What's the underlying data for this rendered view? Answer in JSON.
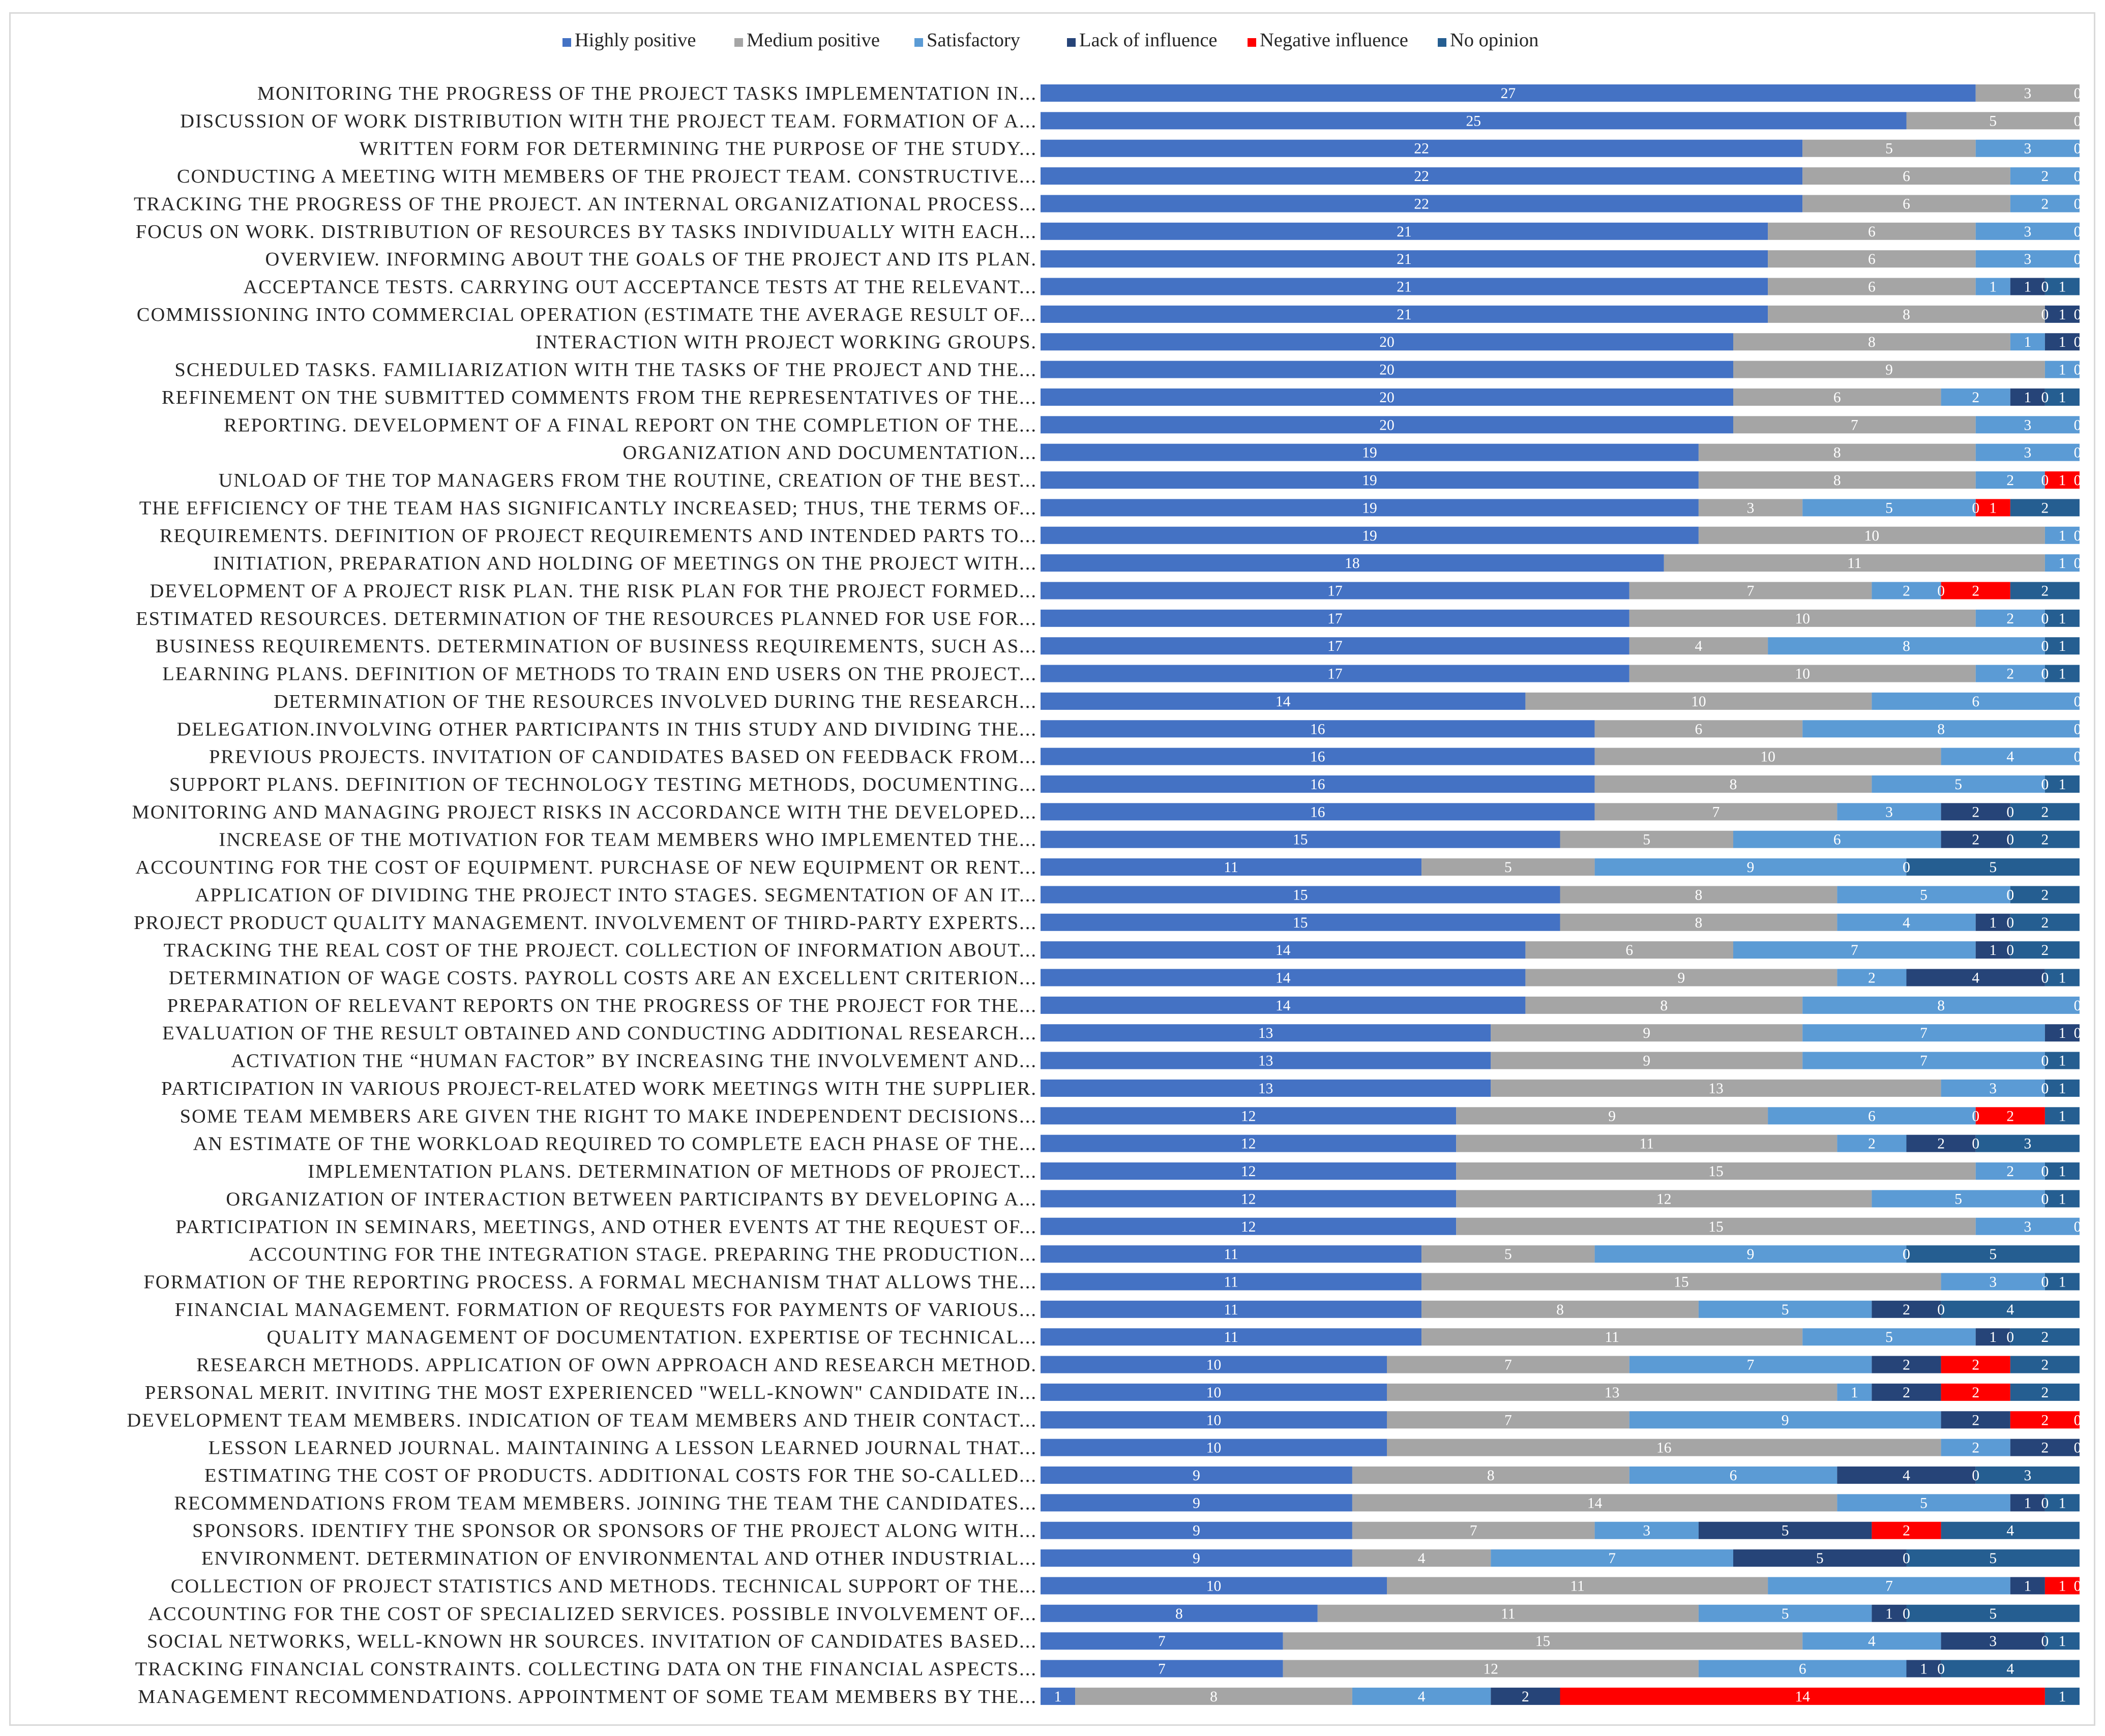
{
  "chart_data": {
    "type": "bar",
    "stacked": true,
    "orientation": "horizontal",
    "legend_position": "top",
    "grid": false,
    "xlim": [
      0,
      30
    ],
    "series": [
      {
        "name": "Highly positive",
        "color": "#4472C4"
      },
      {
        "name": "Medium positive",
        "color": "#A5A5A5"
      },
      {
        "name": "Satisfactory",
        "color": "#5B9BD5"
      },
      {
        "name": "Lack of influence",
        "color": "#264478"
      },
      {
        "name": "Negative influence",
        "color": "#FF0000"
      },
      {
        "name": "No opinion",
        "color": "#255E91"
      }
    ],
    "categories": [
      "MONITORING THE PROGRESS OF THE PROJECT TASKS IMPLEMENTATION IN...",
      "DISCUSSION OF WORK DISTRIBUTION WITH THE PROJECT TEAM. FORMATION OF A...",
      "WRITTEN FORM FOR DETERMINING THE PURPOSE OF THE STUDY...",
      "CONDUCTING A MEETING WITH MEMBERS OF THE PROJECT TEAM. CONSTRUCTIVE...",
      "TRACKING THE PROGRESS OF THE PROJECT. AN INTERNAL ORGANIZATIONAL PROCESS...",
      "FOCUS ON WORK. DISTRIBUTION OF RESOURCES BY TASKS INDIVIDUALLY WITH EACH...",
      "OVERVIEW. INFORMING ABOUT THE GOALS OF THE PROJECT AND ITS PLAN.",
      "ACCEPTANCE TESTS. CARRYING OUT ACCEPTANCE TESTS AT THE RELEVANT...",
      "COMMISSIONING INTO COMMERCIAL OPERATION (ESTIMATE THE AVERAGE RESULT OF...",
      "INTERACTION WITH PROJECT WORKING GROUPS.",
      "SCHEDULED TASKS. FAMILIARIZATION WITH THE TASKS OF THE PROJECT AND THE...",
      "REFINEMENT ON THE SUBMITTED COMMENTS FROM THE REPRESENTATIVES OF THE...",
      "REPORTING. DEVELOPMENT OF A FINAL REPORT ON THE COMPLETION OF THE...",
      "ORGANIZATION AND DOCUMENTATION...",
      "UNLOAD OF THE TOP MANAGERS FROM THE ROUTINE, CREATION OF THE BEST...",
      "THE EFFICIENCY OF THE TEAM HAS SIGNIFICANTLY INCREASED; THUS, THE TERMS OF...",
      "REQUIREMENTS. DEFINITION OF PROJECT REQUIREMENTS AND INTENDED PARTS TO...",
      "INITIATION, PREPARATION AND HOLDING OF MEETINGS ON THE PROJECT WITH...",
      "DEVELOPMENT OF A PROJECT RISK PLAN. THE RISK PLAN FOR THE PROJECT FORMED...",
      "ESTIMATED RESOURCES. DETERMINATION OF THE RESOURCES PLANNED FOR USE FOR...",
      "BUSINESS REQUIREMENTS. DETERMINATION OF BUSINESS REQUIREMENTS, SUCH AS...",
      "LEARNING PLANS. DEFINITION OF METHODS TO TRAIN END USERS ON THE PROJECT...",
      "DETERMINATION OF THE RESOURCES INVOLVED DURING THE RESEARCH...",
      "DELEGATION.INVOLVING OTHER PARTICIPANTS IN THIS STUDY AND DIVIDING THE...",
      "PREVIOUS PROJECTS. INVITATION OF CANDIDATES BASED ON FEEDBACK FROM...",
      "SUPPORT PLANS. DEFINITION OF TECHNOLOGY TESTING METHODS, DOCUMENTING...",
      "MONITORING AND MANAGING PROJECT RISKS IN ACCORDANCE WITH THE DEVELOPED...",
      "INCREASE OF THE MOTIVATION FOR TEAM MEMBERS WHO IMPLEMENTED THE...",
      "ACCOUNTING FOR THE COST OF EQUIPMENT. PURCHASE OF NEW EQUIPMENT OR RENT...",
      "APPLICATION OF DIVIDING THE PROJECT INTO STAGES. SEGMENTATION OF AN IT...",
      "PROJECT PRODUCT QUALITY MANAGEMENT. INVOLVEMENT OF THIRD-PARTY EXPERTS...",
      "TRACKING THE REAL COST OF THE PROJECT. COLLECTION OF INFORMATION ABOUT...",
      "DETERMINATION OF WAGE COSTS. PAYROLL COSTS ARE AN EXCELLENT CRITERION...",
      "PREPARATION OF RELEVANT REPORTS ON THE PROGRESS OF THE PROJECT FOR THE...",
      "EVALUATION OF THE RESULT OBTAINED AND CONDUCTING ADDITIONAL RESEARCH...",
      "ACTIVATION THE “HUMAN FACTOR” BY INCREASING THE INVOLVEMENT AND...",
      "PARTICIPATION IN VARIOUS PROJECT-RELATED WORK MEETINGS WITH THE SUPPLIER.",
      "SOME TEAM MEMBERS ARE GIVEN THE RIGHT TO MAKE INDEPENDENT DECISIONS...",
      "AN ESTIMATE OF THE WORKLOAD REQUIRED TO COMPLETE EACH PHASE OF THE...",
      "IMPLEMENTATION PLANS. DETERMINATION OF METHODS OF PROJECT...",
      "ORGANIZATION OF INTERACTION BETWEEN PARTICIPANTS BY DEVELOPING A...",
      "PARTICIPATION IN SEMINARS, MEETINGS, AND OTHER EVENTS AT THE REQUEST OF...",
      "ACCOUNTING FOR THE INTEGRATION STAGE. PREPARING THE PRODUCTION...",
      "FORMATION OF THE REPORTING PROCESS. A FORMAL MECHANISM THAT ALLOWS THE...",
      "FINANCIAL MANAGEMENT. FORMATION OF REQUESTS FOR PAYMENTS OF VARIOUS...",
      "QUALITY MANAGEMENT OF DOCUMENTATION. EXPERTISE OF TECHNICAL...",
      "RESEARCH METHODS. APPLICATION OF OWN APPROACH AND RESEARCH METHOD.",
      "PERSONAL MERIT. INVITING THE MOST EXPERIENCED \"WELL-KNOWN\" CANDIDATE IN...",
      "DEVELOPMENT TEAM MEMBERS. INDICATION OF TEAM MEMBERS AND THEIR CONTACT...",
      "LESSON LEARNED JOURNAL. MAINTAINING A LESSON LEARNED JOURNAL THAT...",
      "ESTIMATING THE COST OF PRODUCTS. ADDITIONAL COSTS FOR THE SO-CALLED...",
      "RECOMMENDATIONS FROM TEAM MEMBERS. JOINING THE TEAM THE CANDIDATES...",
      "SPONSORS. IDENTIFY THE SPONSOR OR SPONSORS OF THE PROJECT ALONG WITH...",
      "ENVIRONMENT. DETERMINATION OF ENVIRONMENTAL AND OTHER INDUSTRIAL...",
      "COLLECTION OF PROJECT STATISTICS AND METHODS. TECHNICAL SUPPORT OF THE...",
      "ACCOUNTING FOR THE COST OF SPECIALIZED SERVICES. POSSIBLE INVOLVEMENT OF...",
      "SOCIAL NETWORKS, WELL-KNOWN HR SOURCES. INVITATION OF CANDIDATES BASED...",
      "TRACKING FINANCIAL CONSTRAINTS. COLLECTING DATA ON THE FINANCIAL ASPECTS...",
      "MANAGEMENT RECOMMENDATIONS. APPOINTMENT OF SOME TEAM MEMBERS BY THE..."
    ],
    "values": [
      [
        27,
        3,
        0,
        0,
        0,
        0
      ],
      [
        25,
        5,
        0,
        0,
        0,
        0
      ],
      [
        22,
        5,
        3,
        0,
        0,
        0
      ],
      [
        22,
        6,
        2,
        0,
        0,
        0
      ],
      [
        22,
        6,
        2,
        0,
        0,
        0
      ],
      [
        21,
        6,
        3,
        0,
        0,
        0
      ],
      [
        21,
        6,
        3,
        0,
        0,
        0
      ],
      [
        21,
        6,
        1,
        1,
        0,
        1
      ],
      [
        21,
        8,
        0,
        1,
        0,
        0
      ],
      [
        20,
        8,
        1,
        1,
        0,
        0
      ],
      [
        20,
        9,
        1,
        0,
        0,
        0
      ],
      [
        20,
        6,
        2,
        1,
        0,
        1
      ],
      [
        20,
        7,
        3,
        0,
        0,
        0
      ],
      [
        19,
        8,
        3,
        0,
        0,
        0
      ],
      [
        19,
        8,
        2,
        0,
        1,
        0
      ],
      [
        19,
        3,
        5,
        0,
        1,
        2
      ],
      [
        19,
        10,
        1,
        0,
        0,
        0
      ],
      [
        18,
        11,
        1,
        0,
        0,
        0
      ],
      [
        17,
        7,
        2,
        0,
        2,
        2
      ],
      [
        17,
        10,
        2,
        0,
        0,
        1
      ],
      [
        17,
        4,
        8,
        0,
        0,
        1
      ],
      [
        17,
        10,
        2,
        0,
        0,
        1
      ],
      [
        14,
        10,
        6,
        0,
        0,
        0
      ],
      [
        16,
        6,
        8,
        0,
        0,
        0
      ],
      [
        16,
        10,
        4,
        0,
        0,
        0
      ],
      [
        16,
        8,
        5,
        0,
        0,
        1
      ],
      [
        16,
        7,
        3,
        2,
        0,
        2
      ],
      [
        15,
        5,
        6,
        2,
        0,
        2
      ],
      [
        11,
        5,
        9,
        0,
        0,
        5
      ],
      [
        15,
        8,
        5,
        0,
        0,
        2
      ],
      [
        15,
        8,
        4,
        1,
        0,
        2
      ],
      [
        14,
        6,
        7,
        1,
        0,
        2
      ],
      [
        14,
        9,
        2,
        4,
        0,
        1
      ],
      [
        14,
        8,
        8,
        0,
        0,
        0
      ],
      [
        13,
        9,
        7,
        1,
        0,
        0
      ],
      [
        13,
        9,
        7,
        0,
        0,
        1
      ],
      [
        13,
        13,
        3,
        0,
        0,
        1
      ],
      [
        12,
        9,
        6,
        0,
        2,
        1
      ],
      [
        12,
        11,
        2,
        2,
        0,
        3
      ],
      [
        12,
        15,
        2,
        0,
        0,
        1
      ],
      [
        12,
        12,
        5,
        0,
        0,
        1
      ],
      [
        12,
        15,
        3,
        0,
        0,
        0
      ],
      [
        11,
        5,
        9,
        0,
        0,
        5
      ],
      [
        11,
        15,
        3,
        0,
        0,
        1
      ],
      [
        11,
        8,
        5,
        2,
        0,
        4
      ],
      [
        11,
        11,
        5,
        1,
        0,
        2
      ],
      [
        10,
        7,
        7,
        2,
        2,
        2
      ],
      [
        10,
        13,
        1,
        2,
        2,
        2
      ],
      [
        10,
        7,
        9,
        2,
        2,
        0
      ],
      [
        10,
        16,
        2,
        2,
        0,
        0
      ],
      [
        9,
        8,
        6,
        4,
        0,
        3
      ],
      [
        9,
        14,
        5,
        1,
        0,
        1
      ],
      [
        9,
        7,
        3,
        5,
        2,
        4
      ],
      [
        9,
        4,
        7,
        5,
        0,
        5
      ],
      [
        10,
        11,
        7,
        1,
        1,
        0
      ],
      [
        8,
        11,
        5,
        1,
        0,
        5
      ],
      [
        7,
        15,
        4,
        3,
        0,
        1
      ],
      [
        7,
        12,
        6,
        1,
        0,
        4
      ],
      [
        1,
        8,
        4,
        2,
        14,
        1
      ]
    ],
    "title": "",
    "xlabel": "",
    "ylabel": ""
  }
}
